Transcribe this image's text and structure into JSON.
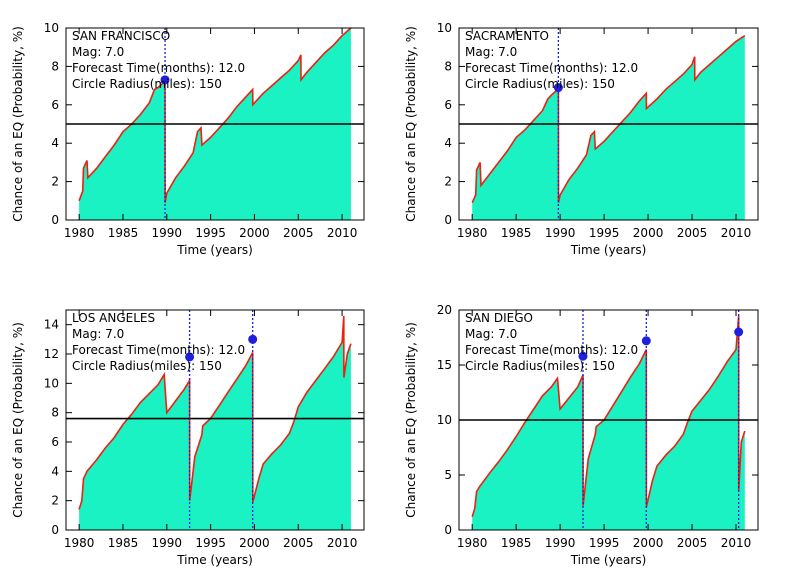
{
  "colors": {
    "fill": "#1af2c4",
    "line": "#e8220f",
    "threshold": "#000000",
    "event_marker": "#1f1fe0",
    "event_line": "#1f1fe0"
  },
  "chart_data": [
    {
      "type": "area",
      "xlabel": "Time (years)",
      "ylabel": "Chance of an EQ (Probability, %)",
      "xlim": [
        1978.5,
        2012.5
      ],
      "ylim": [
        0,
        10
      ],
      "xticks": [
        1980,
        1985,
        1990,
        1995,
        2000,
        2005,
        2010
      ],
      "yticks": [
        0,
        2,
        4,
        6,
        8,
        10
      ],
      "annotations": [
        "SAN FRANCISCO",
        "Mag: 7.0",
        "Forecast Time(months): 12.0",
        "Circle Radius(miles): 150"
      ],
      "threshold": 5.0,
      "events": [
        {
          "x": 1989.8,
          "y": 7.3
        }
      ],
      "series": [
        {
          "x": [
            1980.0,
            1980.4,
            1980.5,
            1980.9,
            1981.0,
            1982,
            1983,
            1984,
            1985,
            1986,
            1987,
            1988,
            1988.6,
            1989.0,
            1989.5,
            1989.8,
            1989.81,
            1990.0,
            1991,
            1992,
            1993,
            1993.5,
            1993.9,
            1994.0,
            1995,
            1996,
            1997,
            1998,
            1999,
            1999.8,
            1999.81,
            2001,
            2002,
            2003,
            2004,
            2005,
            2005.3,
            2005.31,
            2006,
            2007,
            2008,
            2009,
            2010,
            2011
          ],
          "y": [
            1.0,
            1.5,
            2.7,
            3.1,
            2.2,
            2.7,
            3.3,
            3.9,
            4.6,
            5.0,
            5.5,
            6.1,
            6.8,
            6.9,
            7.1,
            7.4,
            0.9,
            1.4,
            2.2,
            2.8,
            3.5,
            4.6,
            4.8,
            3.9,
            4.3,
            4.8,
            5.3,
            5.9,
            6.4,
            6.8,
            6.0,
            6.6,
            7.0,
            7.4,
            7.8,
            8.3,
            8.6,
            7.3,
            7.7,
            8.2,
            8.7,
            9.1,
            9.6,
            10.0
          ]
        }
      ]
    },
    {
      "type": "area",
      "xlabel": "Time (years)",
      "ylabel": "Chance of an EQ (Probability, %)",
      "xlim": [
        1978.5,
        2012.5
      ],
      "ylim": [
        0,
        10
      ],
      "xticks": [
        1980,
        1985,
        1990,
        1995,
        2000,
        2005,
        2010
      ],
      "yticks": [
        0,
        2,
        4,
        6,
        8,
        10
      ],
      "annotations": [
        "SACRAMENTO",
        "Mag: 7.0",
        "Forecast Time(months): 12.0",
        "Circle Radius(miles): 150"
      ],
      "threshold": 5.0,
      "events": [
        {
          "x": 1989.8,
          "y": 6.9
        }
      ],
      "series": [
        {
          "x": [
            1980.0,
            1980.4,
            1980.5,
            1980.9,
            1981.0,
            1982,
            1983,
            1984,
            1985,
            1986,
            1987,
            1988,
            1988.6,
            1989.0,
            1989.5,
            1989.8,
            1989.81,
            1990.0,
            1991,
            1992,
            1993,
            1993.5,
            1993.9,
            1994.0,
            1995,
            1996,
            1997,
            1998,
            1999,
            1999.8,
            1999.81,
            2001,
            2002,
            2003,
            2004,
            2005,
            2005.3,
            2005.31,
            2006,
            2007,
            2008,
            2009,
            2010,
            2011
          ],
          "y": [
            0.9,
            1.3,
            2.6,
            3.0,
            1.8,
            2.4,
            3.0,
            3.6,
            4.3,
            4.7,
            5.2,
            5.7,
            6.3,
            6.5,
            6.7,
            7.0,
            0.9,
            1.3,
            2.1,
            2.7,
            3.4,
            4.4,
            4.6,
            3.7,
            4.1,
            4.6,
            5.1,
            5.6,
            6.2,
            6.6,
            5.8,
            6.3,
            6.8,
            7.2,
            7.6,
            8.1,
            8.5,
            7.3,
            7.7,
            8.1,
            8.5,
            8.9,
            9.3,
            9.6
          ]
        }
      ]
    },
    {
      "type": "area",
      "xlabel": "Time (years)",
      "ylabel": "Chance of an EQ (Probability, %)",
      "xlim": [
        1978.5,
        2012.5
      ],
      "ylim": [
        0,
        15
      ],
      "xticks": [
        1980,
        1985,
        1990,
        1995,
        2000,
        2005,
        2010
      ],
      "yticks": [
        0,
        2,
        4,
        6,
        8,
        10,
        12,
        14
      ],
      "annotations": [
        "LOS ANGELES",
        "Mag: 7.0",
        "Forecast Time(months): 12.0",
        "Circle Radius(miles): 150"
      ],
      "threshold": 7.6,
      "events": [
        {
          "x": 1992.6,
          "y": 11.8
        },
        {
          "x": 1999.8,
          "y": 13.0
        }
      ],
      "series": [
        {
          "x": [
            1980.0,
            1980.3,
            1980.5,
            1980.9,
            1982,
            1983,
            1984,
            1985,
            1986,
            1987,
            1988,
            1989,
            1989.7,
            1990.0,
            1991,
            1992,
            1992.6,
            1992.61,
            1993.2,
            1994.0,
            1994.1,
            1995,
            1996,
            1997,
            1998,
            1999,
            1999.8,
            1999.81,
            2000.5,
            2001,
            2002,
            2003,
            2004,
            2004.5,
            2005,
            2006,
            2007,
            2008,
            2009,
            2010,
            2010.2,
            2010.21,
            2010.6,
            2011
          ],
          "y": [
            1.4,
            2.0,
            3.5,
            4.0,
            4.8,
            5.6,
            6.3,
            7.2,
            7.9,
            8.7,
            9.3,
            9.9,
            10.6,
            8.0,
            8.8,
            9.6,
            10.2,
            2.0,
            5.0,
            6.5,
            7.1,
            7.6,
            8.5,
            9.4,
            10.3,
            11.2,
            12.1,
            1.9,
            3.5,
            4.5,
            5.2,
            5.8,
            6.6,
            7.4,
            8.4,
            9.4,
            10.2,
            11.0,
            11.8,
            12.8,
            14.6,
            10.4,
            12.0,
            12.7
          ]
        }
      ]
    },
    {
      "type": "area",
      "xlabel": "Time (years)",
      "ylabel": "Chance of an EQ (Probability, %)",
      "xlim": [
        1978.5,
        2012.5
      ],
      "ylim": [
        0,
        20
      ],
      "xticks": [
        1980,
        1985,
        1990,
        1995,
        2000,
        2005,
        2010
      ],
      "yticks": [
        0,
        5,
        10,
        15,
        20
      ],
      "annotations": [
        "SAN DIEGO",
        "Mag: 7.0",
        "Forecast Time(months): 12.0",
        "Circle Radius(miles): 150"
      ],
      "threshold": 10.0,
      "events": [
        {
          "x": 1992.6,
          "y": 15.8
        },
        {
          "x": 1999.8,
          "y": 17.2
        },
        {
          "x": 2010.3,
          "y": 18.0
        }
      ],
      "series": [
        {
          "x": [
            1980.0,
            1980.3,
            1980.5,
            1980.9,
            1982,
            1983,
            1984,
            1985,
            1986,
            1987,
            1988,
            1989,
            1989.7,
            1990.0,
            1991,
            1992,
            1992.6,
            1992.61,
            1993.2,
            1994.0,
            1994.1,
            1995,
            1996,
            1997,
            1998,
            1999,
            1999.8,
            1999.81,
            2000.5,
            2001,
            2002,
            2003,
            2004,
            2004.5,
            2005,
            2006,
            2007,
            2008,
            2009,
            2010,
            2010.3,
            2010.31,
            2010.6,
            2011
          ],
          "y": [
            1.2,
            2.0,
            3.5,
            4.0,
            5.2,
            6.2,
            7.3,
            8.5,
            9.8,
            11.0,
            12.2,
            13.0,
            13.8,
            11.0,
            12.0,
            13.0,
            14.1,
            2.2,
            6.5,
            8.7,
            9.4,
            10.0,
            11.3,
            12.6,
            13.9,
            15.1,
            16.4,
            2.1,
            4.5,
            5.8,
            6.8,
            7.6,
            8.7,
            9.8,
            10.8,
            11.8,
            12.8,
            14.0,
            15.3,
            16.4,
            19.5,
            3.5,
            8.0,
            9.0
          ]
        }
      ]
    }
  ]
}
